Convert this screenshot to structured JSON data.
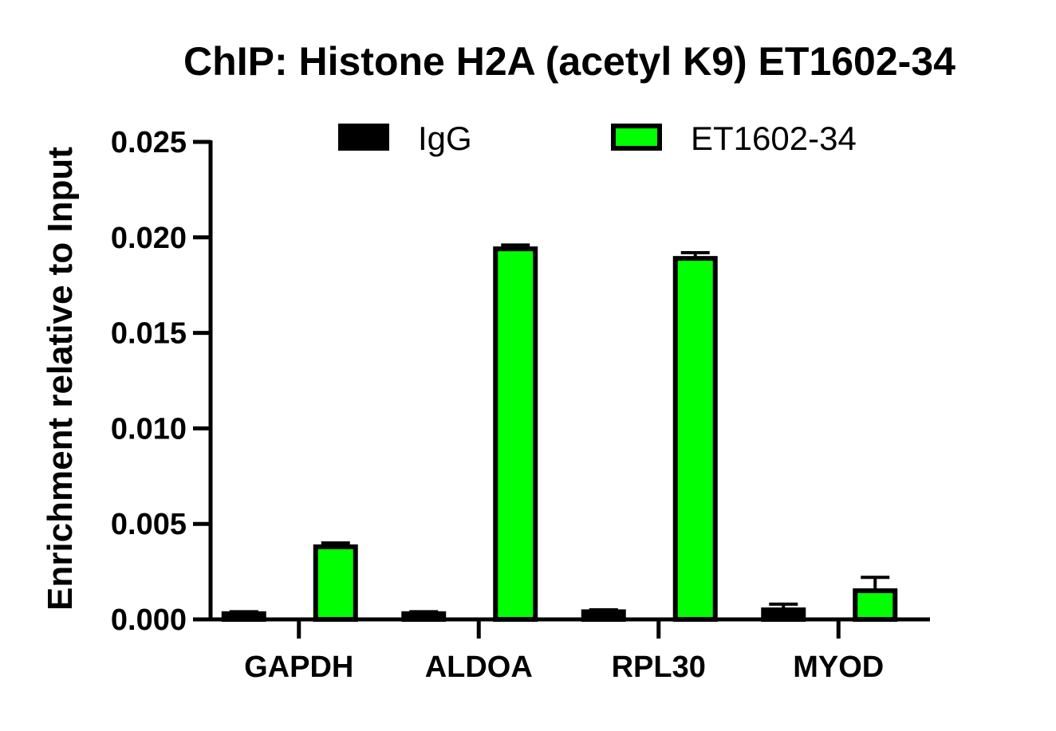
{
  "chart_data": {
    "type": "bar",
    "title": "ChIP: Histone H2A (acetyl K9) ET1602-34",
    "xlabel": "",
    "ylabel": "Enrichment relative to Input",
    "categories": [
      "GAPDH",
      "ALDOA",
      "RPL30",
      "MYOD"
    ],
    "ylim": [
      0,
      0.025
    ],
    "yticks": [
      "0.000",
      "0.005",
      "0.010",
      "0.015",
      "0.020",
      "0.025"
    ],
    "legend_position": "top",
    "grid": false,
    "series": [
      {
        "name": "IgG",
        "color": "#000000",
        "values": [
          0.0003,
          0.0003,
          0.0004,
          0.0005
        ],
        "errors": [
          0.0001,
          0.0001,
          0.0001,
          0.0003
        ]
      },
      {
        "name": "ET1602-34",
        "color": "#00ff00",
        "values": [
          0.0038,
          0.0194,
          0.0189,
          0.0015
        ],
        "errors": [
          0.0002,
          0.0002,
          0.0003,
          0.0007
        ]
      }
    ]
  }
}
